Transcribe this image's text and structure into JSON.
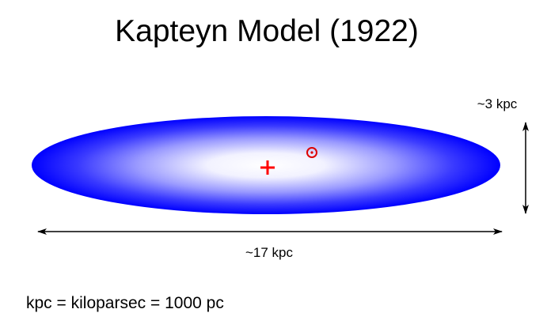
{
  "title": "Kapteyn Model (1922)",
  "thickness_label": "~3 kpc",
  "diameter_label": "~17 kpc",
  "footnote": "kpc = kiloparsec = 1000 pc",
  "colors": {
    "galaxy_edge": "#0000ff",
    "galaxy_center": "#ffffff",
    "center_marker": "#ff0000",
    "sun_marker": "#dd0000",
    "arrows": "#000000"
  },
  "icons": {
    "center": "plus-cross",
    "sun": "sun-symbol-circled-dot"
  }
}
